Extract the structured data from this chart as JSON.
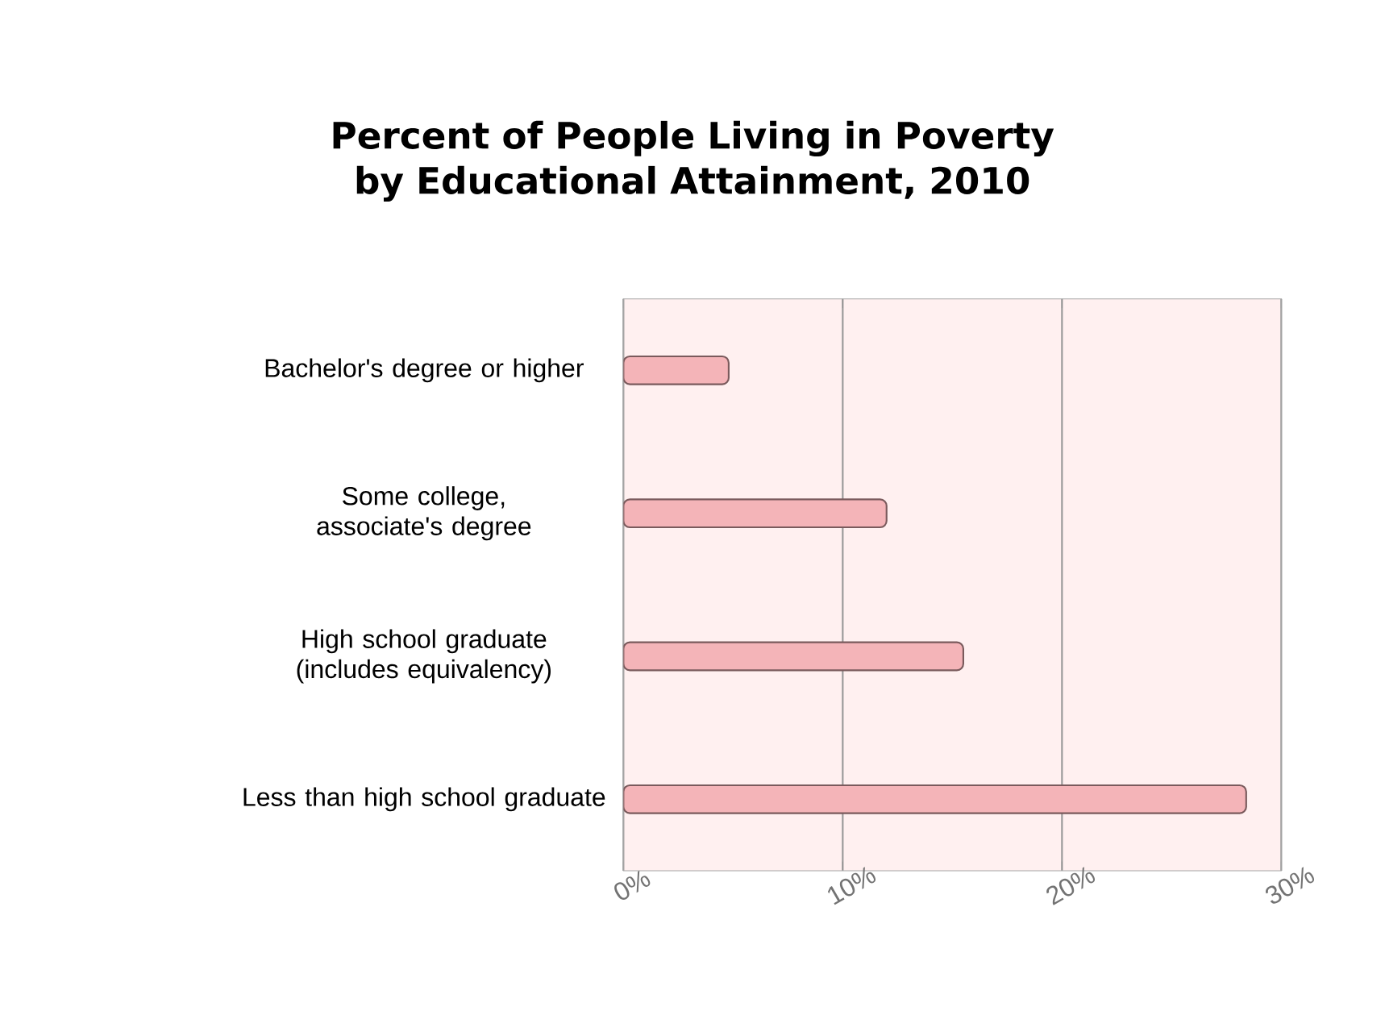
{
  "chart_data": {
    "type": "bar",
    "orientation": "horizontal",
    "title": "Percent of People Living in Poverty by Educational Attainment, 2010",
    "categories": [
      "Bachelor's degree or higher",
      "Some college, associate's degree",
      "High school graduate (includes equivalency)",
      "Less than high school graduate"
    ],
    "values": [
      4.8,
      12.0,
      15.5,
      28.4
    ],
    "color": "#f4b4b8",
    "xlim": [
      0,
      30
    ],
    "xticks": [
      {
        "value": 0,
        "label": "0%"
      },
      {
        "value": 10,
        "label": "10%"
      },
      {
        "value": 20,
        "label": "20%"
      },
      {
        "value": 30,
        "label": "30%"
      }
    ],
    "grid": "x"
  }
}
